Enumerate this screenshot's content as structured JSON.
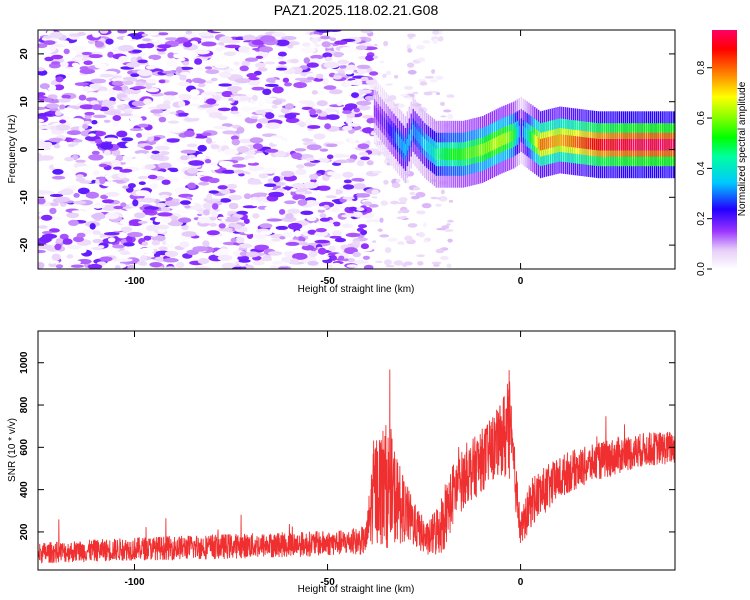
{
  "title": "PAZ1.2025.118.02.21.G08",
  "chart_data": [
    {
      "type": "heatmap",
      "xlabel": "Height of straight line (km)",
      "ylabel": "Frequency (Hz)",
      "xlim": [
        -125,
        40
      ],
      "ylim": [
        -25,
        25
      ],
      "x_ticks": [
        -100,
        -50,
        0
      ],
      "y_ticks": [
        -20,
        -10,
        0,
        10,
        20
      ],
      "x_tick_labels": [
        "-100",
        "-50",
        "0"
      ],
      "y_tick_labels": [
        "-20",
        "-10",
        "0",
        "10",
        "20"
      ],
      "colorbar": {
        "label": "Normalized spectral amplitude",
        "range": [
          0.0,
          0.95
        ],
        "ticks": [
          0.0,
          0.2,
          0.4,
          0.6,
          0.8
        ],
        "tick_labels": [
          "0.0",
          "0.2",
          "0.4",
          "0.6",
          "0.8"
        ],
        "colormap": "white-violet-blue-cyan-green-yellow-red-magenta"
      },
      "noise_region": {
        "x_range": [
          -125,
          -38
        ],
        "y_range": [
          -25,
          25
        ],
        "amplitude_range": [
          0.0,
          0.2
        ]
      },
      "signal_trace": {
        "x": [
          -38,
          -35,
          -32,
          -30,
          -28,
          -25,
          -22,
          -20,
          -15,
          -10,
          -5,
          -2,
          0,
          5,
          10,
          20,
          30,
          40
        ],
        "frequency": [
          8,
          5,
          2,
          0,
          4,
          1,
          -1,
          -1,
          -1,
          0,
          2,
          3,
          4,
          1,
          2,
          1,
          1,
          1
        ],
        "amplitude": [
          0.15,
          0.2,
          0.3,
          0.35,
          0.3,
          0.35,
          0.45,
          0.5,
          0.55,
          0.6,
          0.65,
          0.55,
          0.25,
          0.8,
          0.75,
          0.9,
          0.95,
          0.95
        ]
      }
    },
    {
      "type": "line",
      "xlabel": "Height of straight line (km)",
      "ylabel": "SNR (10 * v/v)",
      "xlim": [
        -125,
        40
      ],
      "ylim": [
        20,
        1150
      ],
      "x_ticks": [
        -100,
        -50,
        0
      ],
      "y_ticks": [
        200,
        400,
        600,
        800,
        1000
      ],
      "x_tick_labels": [
        "-100",
        "-50",
        "0"
      ],
      "y_tick_labels": [
        "200",
        "400",
        "600",
        "800",
        "1000"
      ],
      "line_color": "#f03030",
      "envelope": {
        "x": [
          -125,
          -100,
          -80,
          -60,
          -45,
          -40,
          -38,
          -35,
          -33,
          -30,
          -27,
          -24,
          -22,
          -20,
          -17,
          -14,
          -11,
          -8,
          -5,
          -3,
          -2,
          0,
          3,
          8,
          12,
          18,
          25,
          32,
          40
        ],
        "mean": [
          100,
          120,
          130,
          140,
          150,
          160,
          400,
          420,
          380,
          300,
          220,
          160,
          200,
          250,
          400,
          470,
          520,
          580,
          640,
          680,
          550,
          200,
          350,
          420,
          480,
          520,
          560,
          590,
          600
        ],
        "amp": [
          50,
          55,
          60,
          60,
          60,
          70,
          250,
          300,
          250,
          150,
          100,
          80,
          120,
          150,
          150,
          140,
          150,
          150,
          170,
          300,
          150,
          80,
          120,
          110,
          100,
          90,
          90,
          80,
          80
        ]
      }
    }
  ]
}
